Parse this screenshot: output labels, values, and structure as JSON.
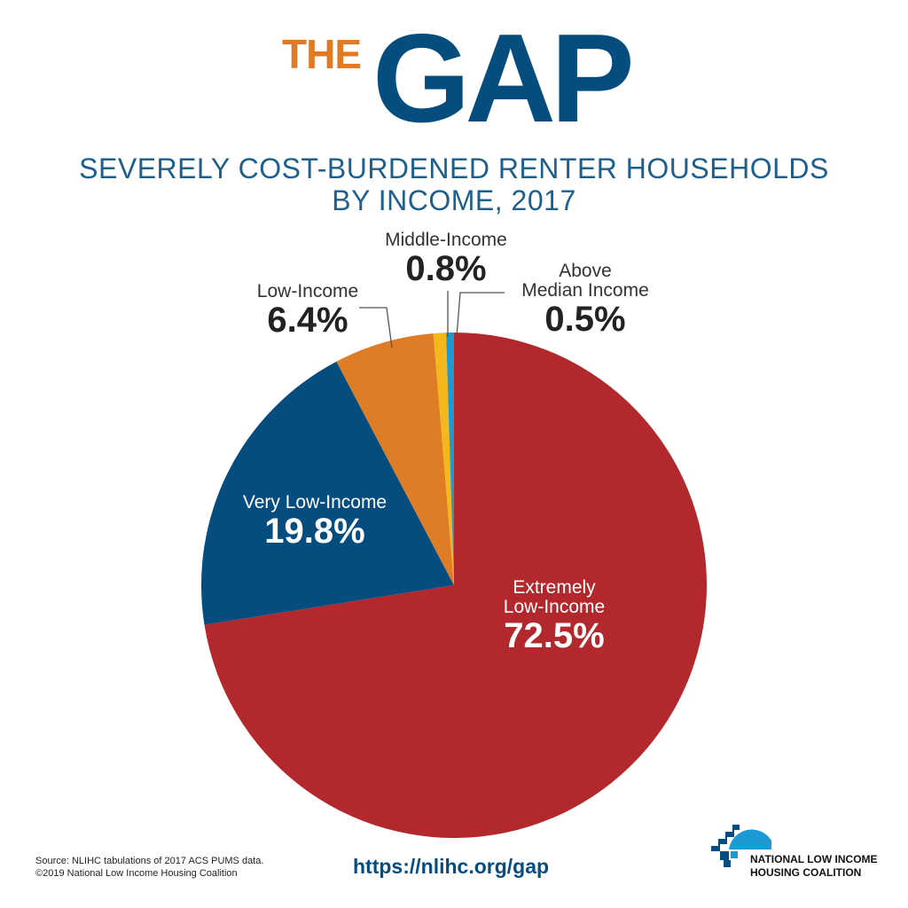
{
  "header": {
    "logo_the": "THE",
    "logo_gap": "GAP",
    "title_line1": "SEVERELY COST-BURDENED RENTER HOUSEHOLDS",
    "title_line2": "BY INCOME, 2017"
  },
  "labels": {
    "extremely_low_line1": "Extremely",
    "extremely_low_line2": "Low-Income",
    "extremely_low_pct": "72.5%",
    "very_low": "Very Low-Income",
    "very_low_pct": "19.8%",
    "low": "Low-Income",
    "low_pct": "6.4%",
    "middle": "Middle-Income",
    "middle_pct": "0.8%",
    "above_line1": "Above",
    "above_line2": "Median Income",
    "above_pct": "0.5%"
  },
  "footer": {
    "source": "Source: NLIHC tabulations of 2017 ACS PUMS data.",
    "copyright": "©2019 National Low Income Housing Coalition",
    "url": "https://nlihc.org/gap",
    "org_line1": "NATIONAL LOW INCOME",
    "org_line2": "HOUSING COALITION"
  },
  "colors": {
    "extremely_low": "#b3282d",
    "very_low": "#054d7f",
    "low": "#df7d26",
    "middle": "#f5b81c",
    "above": "#1d9ad6"
  },
  "chart_data": {
    "type": "pie",
    "title": "SEVERELY COST-BURDENED RENTER HOUSEHOLDS BY INCOME, 2017",
    "start_angle_deg": 0,
    "direction": "clockwise",
    "slices": [
      {
        "label": "Extremely Low-Income",
        "value": 72.5,
        "color": "#b3282d"
      },
      {
        "label": "Very Low-Income",
        "value": 19.8,
        "color": "#054d7f"
      },
      {
        "label": "Low-Income",
        "value": 6.4,
        "color": "#df7d26"
      },
      {
        "label": "Middle-Income",
        "value": 0.8,
        "color": "#f5b81c"
      },
      {
        "label": "Above Median Income",
        "value": 0.5,
        "color": "#1d9ad6"
      }
    ]
  }
}
